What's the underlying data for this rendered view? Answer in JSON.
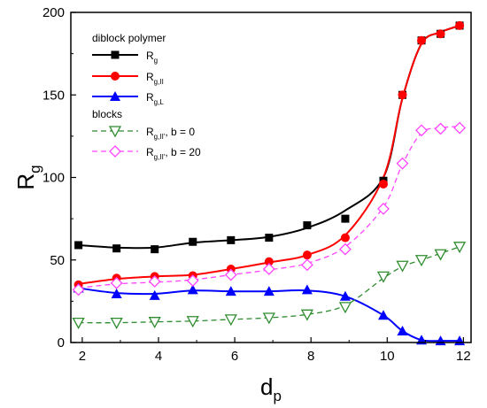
{
  "chart_data": {
    "type": "line",
    "xlabel": "d",
    "xlabel_sub": "p",
    "ylabel": "R",
    "ylabel_sub": "g",
    "xlim": [
      1.7,
      12.2
    ],
    "ylim": [
      0,
      200
    ],
    "xticks": [
      "2",
      "4",
      "6",
      "8",
      "10",
      "12"
    ],
    "xtick_values": [
      2,
      4,
      6,
      8,
      10,
      12
    ],
    "yticks": [
      "0",
      "50",
      "100",
      "150",
      "200"
    ],
    "ytick_values": [
      0,
      50,
      100,
      150,
      200
    ],
    "grid": false,
    "legend_position": "top-left",
    "legend_headers": [
      "diblock polymer",
      "blocks"
    ],
    "series": [
      {
        "name": "R",
        "name_sub": "g",
        "name_suffix": "",
        "group": "diblock polymer",
        "color": "#000000",
        "marker": "square-filled",
        "line": "solid",
        "x": [
          1.9,
          2.9,
          3.9,
          4.9,
          5.9,
          6.9,
          7.9,
          8.9,
          9.9,
          10.4,
          10.9,
          11.4,
          11.9
        ],
        "values": [
          59,
          57,
          56.5,
          61,
          62,
          63.5,
          71,
          75,
          98,
          150,
          183,
          187,
          192
        ],
        "curve_y": [
          59,
          57.5,
          57.5,
          60.5,
          62,
          64,
          69.5,
          80,
          100,
          148,
          181,
          188,
          192
        ]
      },
      {
        "name": "R",
        "name_sub": "g,II",
        "name_suffix": "",
        "group": "diblock polymer",
        "color": "#ff0000",
        "marker": "circle-filled",
        "line": "solid",
        "x": [
          1.9,
          2.9,
          3.9,
          4.9,
          5.9,
          6.9,
          7.9,
          8.9,
          9.9,
          10.4,
          10.9,
          11.4,
          11.9
        ],
        "values": [
          35,
          39,
          40,
          40.5,
          44.5,
          49,
          53,
          63.5,
          96,
          150,
          183,
          187,
          192
        ],
        "curve_y": [
          35.5,
          38.5,
          40,
          41,
          44.5,
          48.5,
          53,
          65,
          100,
          148,
          181,
          188,
          192
        ]
      },
      {
        "name": "R",
        "name_sub": "g,L",
        "name_suffix": "",
        "group": "diblock polymer",
        "color": "#0000ff",
        "marker": "triangle-up-filled",
        "line": "solid",
        "x": [
          1.9,
          2.9,
          3.9,
          4.9,
          5.9,
          6.9,
          7.9,
          8.9,
          9.9,
          10.4,
          10.9,
          11.4,
          11.9
        ],
        "values": [
          33,
          29.5,
          28.5,
          32,
          31,
          31,
          32,
          28,
          16.5,
          7,
          1.5,
          1,
          1
        ],
        "curve_y": [
          33,
          30,
          29.5,
          31.5,
          31,
          31,
          31.5,
          28,
          16.5,
          7,
          1.5,
          1,
          1
        ]
      },
      {
        "name": "R",
        "name_sub": "g,II'",
        "name_suffix": ", b = 0",
        "group": "blocks",
        "color": "#2e8b2e",
        "marker": "triangle-down-open",
        "line": "dashed",
        "x": [
          1.9,
          2.9,
          3.9,
          4.9,
          5.9,
          6.9,
          7.9,
          8.9,
          9.9,
          10.4,
          10.9,
          11.4,
          11.9
        ],
        "values": [
          12,
          12,
          12.5,
          13,
          14,
          15,
          17,
          21.5,
          40,
          46.5,
          50,
          53.5,
          58
        ],
        "curve_y": [
          12,
          12,
          12.5,
          13,
          14,
          15,
          17,
          22.5,
          39,
          46,
          50,
          54,
          58
        ]
      },
      {
        "name": "R",
        "name_sub": "g,II'",
        "name_suffix": ", b = 20",
        "group": "blocks",
        "color": "#ff44ff",
        "marker": "diamond-open",
        "line": "dashed",
        "x": [
          1.9,
          2.9,
          3.9,
          4.9,
          5.9,
          6.9,
          7.9,
          8.9,
          9.9,
          10.4,
          10.9,
          11.4,
          11.9
        ],
        "values": [
          32,
          36,
          37,
          37.5,
          41,
          44.5,
          47,
          56.5,
          81,
          108.5,
          128.5,
          129.5,
          130
        ],
        "curve_y": [
          33,
          35.5,
          36.5,
          38,
          41,
          44,
          48,
          58,
          82,
          108,
          127,
          130,
          131
        ]
      }
    ]
  }
}
